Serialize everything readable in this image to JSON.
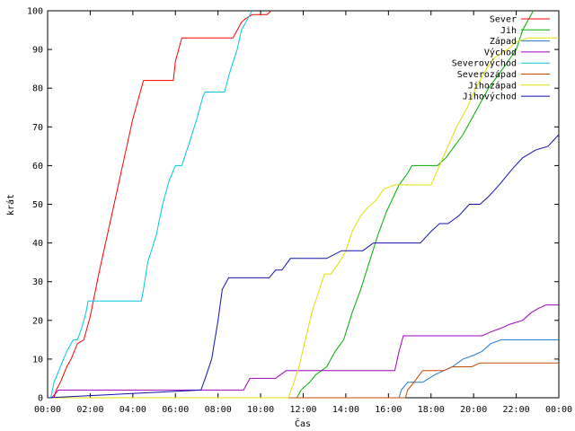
{
  "chart_data": {
    "type": "line",
    "xlabel": "Čas",
    "ylabel": "krát",
    "xlim": [
      0,
      24
    ],
    "ylim": [
      0,
      100
    ],
    "grid": false,
    "legend_position": "top-right",
    "x_ticks": [
      {
        "value": 0,
        "label": "00:00"
      },
      {
        "value": 2,
        "label": "02:00"
      },
      {
        "value": 4,
        "label": "04:00"
      },
      {
        "value": 6,
        "label": "06:00"
      },
      {
        "value": 8,
        "label": "08:00"
      },
      {
        "value": 10,
        "label": "10:00"
      },
      {
        "value": 12,
        "label": "12:00"
      },
      {
        "value": 14,
        "label": "14:00"
      },
      {
        "value": 16,
        "label": "16:00"
      },
      {
        "value": 18,
        "label": "18:00"
      },
      {
        "value": 20,
        "label": "20:00"
      },
      {
        "value": 22,
        "label": "22:00"
      },
      {
        "value": 24,
        "label": "00:00"
      }
    ],
    "y_ticks": [
      0,
      10,
      20,
      30,
      40,
      50,
      60,
      70,
      80,
      90,
      100
    ],
    "series": [
      {
        "name": "Sever",
        "color": "#ff0000",
        "x": [
          0,
          0.3,
          0.4,
          0.6,
          0.9,
          1.1,
          1.4,
          1.7,
          2.0,
          2.4,
          2.8,
          3.2,
          3.6,
          4.0,
          4.4,
          4.5,
          5.9,
          6.0,
          6.3,
          8.7,
          8.9,
          9.1,
          9.3,
          9.6,
          10.0,
          10.3,
          10.5
        ],
        "y": [
          0,
          0,
          2,
          4,
          8,
          10,
          14,
          15,
          21,
          32,
          42,
          52,
          62,
          72,
          80,
          82,
          82,
          87,
          93,
          93,
          95,
          97,
          98,
          99,
          99,
          99,
          100
        ]
      },
      {
        "name": "Jih",
        "color": "#00b000",
        "x": [
          0,
          11.7,
          11.9,
          12.3,
          12.6,
          13.1,
          13.5,
          13.9,
          14.3,
          14.7,
          15.1,
          15.5,
          15.9,
          16.5,
          16.9,
          17.1,
          18.3,
          18.7,
          19.1,
          19.5,
          19.9,
          20.3,
          20.7,
          21.1,
          21.5,
          22.0,
          22.3,
          22.6,
          22.8
        ],
        "y": [
          0,
          0,
          2,
          4,
          6,
          8,
          12,
          15,
          22,
          28,
          35,
          42,
          48,
          55,
          58,
          60,
          60,
          62,
          65,
          68,
          72,
          76,
          80,
          83,
          86,
          90,
          95,
          98,
          100
        ]
      },
      {
        "name": "Západ",
        "color": "#1e7ad0",
        "x": [
          0,
          16.5,
          16.6,
          16.9,
          17.2,
          17.6,
          17.9,
          18.2,
          18.6,
          19.0,
          19.5,
          20.0,
          20.4,
          20.8,
          21.3,
          21.8,
          22.2,
          22.7,
          23.2,
          23.6,
          24.0
        ],
        "y": [
          0,
          0,
          2,
          4,
          4,
          4,
          5,
          6,
          7,
          8,
          10,
          11,
          12,
          14,
          15,
          15,
          15,
          15,
          15,
          15,
          15
        ]
      },
      {
        "name": "Východ",
        "color": "#a000c0",
        "x": [
          0,
          0.2,
          0.5,
          9.2,
          9.5,
          10.7,
          11.2,
          11.6,
          16.3,
          16.5,
          16.7,
          18.6,
          18.8,
          19.3,
          20.4,
          20.8,
          21.3,
          21.7,
          22.3,
          22.7,
          23.0,
          23.4,
          24.0
        ],
        "y": [
          0,
          0,
          2,
          2,
          5,
          5,
          7,
          7,
          7,
          12,
          16,
          16,
          16,
          16,
          16,
          17,
          18,
          19,
          20,
          22,
          23,
          24,
          24
        ]
      },
      {
        "name": "Severovýchod",
        "color": "#00c8e0",
        "x": [
          0,
          0.15,
          0.3,
          0.6,
          0.9,
          1.2,
          1.4,
          1.6,
          1.8,
          1.9,
          2.0,
          2.2,
          4.4,
          4.5,
          4.7,
          5.1,
          5.4,
          5.7,
          6.0,
          6.3,
          6.6,
          7.0,
          7.3,
          7.4,
          8.3,
          8.6,
          8.9,
          9.1,
          9.3,
          9.6
        ],
        "y": [
          0,
          0,
          4,
          8,
          12,
          15,
          15,
          18,
          22,
          25,
          25,
          25,
          25,
          28,
          35,
          42,
          50,
          56,
          60,
          60,
          65,
          72,
          78,
          79,
          79,
          85,
          90,
          95,
          97,
          100
        ]
      },
      {
        "name": "Severozápad",
        "color": "#c84800",
        "x": [
          0,
          16.8,
          16.9,
          17.2,
          17.6,
          17.9,
          18.2,
          18.6,
          19.0,
          19.3,
          19.5,
          19.9,
          20.3,
          20.6,
          21.0,
          21.6,
          22.4,
          23.2,
          24.0
        ],
        "y": [
          0,
          0,
          2,
          4,
          7,
          7,
          7,
          7,
          8,
          8,
          8,
          8,
          9,
          9,
          9,
          9,
          9,
          9,
          9
        ]
      },
      {
        "name": "Jihozápad",
        "color": "#e0e000",
        "x": [
          0,
          11.3,
          11.5,
          11.8,
          12.1,
          12.4,
          12.7,
          13.0,
          13.3,
          13.7,
          14.0,
          14.3,
          14.7,
          15.0,
          15.4,
          15.8,
          16.3,
          16.6,
          16.9,
          17.2,
          18.0,
          18.4,
          18.8,
          19.2,
          19.7,
          20.1,
          20.6,
          21.0,
          21.6,
          22.0,
          22.6,
          23.2,
          24.0
        ],
        "y": [
          0,
          0,
          3,
          8,
          15,
          22,
          27,
          32,
          32,
          35,
          38,
          43,
          47,
          49,
          51,
          54,
          55,
          55,
          55,
          55,
          55,
          60,
          65,
          70,
          75,
          80,
          85,
          88,
          90,
          92,
          93,
          93,
          93
        ]
      },
      {
        "name": "Jihovýchod",
        "color": "#1010b0",
        "x": [
          0,
          7.2,
          7.4,
          7.7,
          8.0,
          8.2,
          8.5,
          9.0,
          10.4,
          10.7,
          11.0,
          11.4,
          11.8,
          12.3,
          13.1,
          13.8,
          14.3,
          14.8,
          15.3,
          15.8,
          16.2,
          16.6,
          17.0,
          17.5,
          18.0,
          18.4,
          18.8,
          19.3,
          19.8,
          20.3,
          20.7,
          21.2,
          21.8,
          22.3,
          22.9,
          23.5,
          24.0
        ],
        "y": [
          0,
          2,
          5,
          10,
          20,
          28,
          31,
          31,
          31,
          33,
          33,
          36,
          36,
          36,
          36,
          38,
          38,
          38,
          40,
          40,
          40,
          40,
          40,
          40,
          43,
          45,
          45,
          47,
          50,
          50,
          52,
          55,
          59,
          62,
          64,
          65,
          68
        ]
      }
    ]
  }
}
